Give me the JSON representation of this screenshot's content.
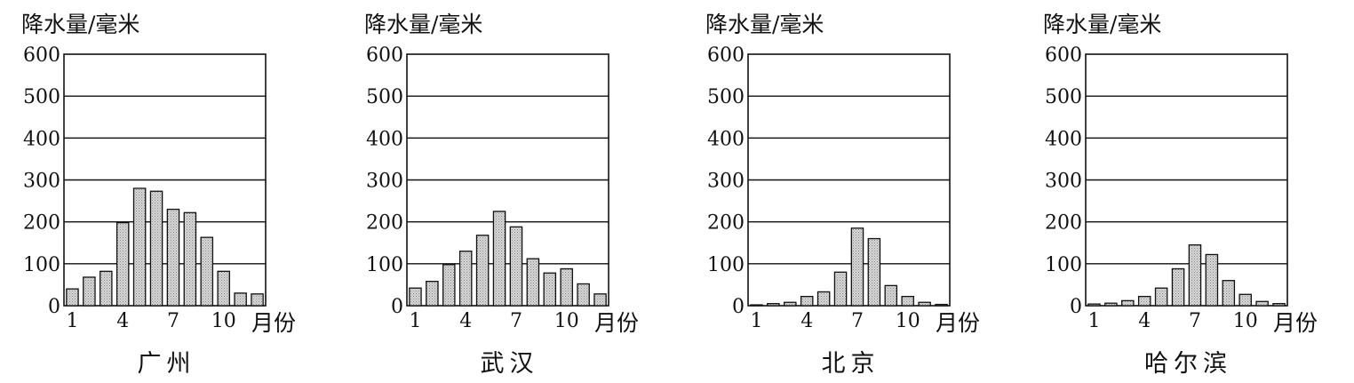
{
  "chart_data": [
    {
      "type": "bar",
      "title": "广州",
      "ylabel": "降水量/毫米",
      "xlabel": "月份",
      "ylim": [
        0,
        600
      ],
      "yticks": [
        "0",
        "100",
        "200",
        "300",
        "400",
        "500",
        "600"
      ],
      "xticks": [
        "1",
        "4",
        "7",
        "10"
      ],
      "categories": [
        "1",
        "2",
        "3",
        "4",
        "5",
        "6",
        "7",
        "8",
        "9",
        "10",
        "11",
        "12"
      ],
      "values": [
        40,
        68,
        82,
        198,
        280,
        273,
        230,
        222,
        163,
        82,
        30,
        28
      ]
    },
    {
      "type": "bar",
      "title": "武汉",
      "ylabel": "降水量/毫米",
      "xlabel": "月份",
      "ylim": [
        0,
        600
      ],
      "yticks": [
        "0",
        "100",
        "200",
        "300",
        "400",
        "500",
        "600"
      ],
      "xticks": [
        "1",
        "4",
        "7",
        "10"
      ],
      "categories": [
        "1",
        "2",
        "3",
        "4",
        "5",
        "6",
        "7",
        "8",
        "9",
        "10",
        "11",
        "12"
      ],
      "values": [
        42,
        58,
        98,
        130,
        168,
        225,
        188,
        112,
        78,
        88,
        52,
        28
      ]
    },
    {
      "type": "bar",
      "title": "北京",
      "ylabel": "降水量/毫米",
      "xlabel": "月份",
      "ylim": [
        0,
        600
      ],
      "yticks": [
        "0",
        "100",
        "200",
        "300",
        "400",
        "500",
        "600"
      ],
      "xticks": [
        "1",
        "4",
        "7",
        "10"
      ],
      "categories": [
        "1",
        "2",
        "3",
        "4",
        "5",
        "6",
        "7",
        "8",
        "9",
        "10",
        "11",
        "12"
      ],
      "values": [
        2,
        5,
        8,
        22,
        33,
        80,
        185,
        160,
        48,
        22,
        8,
        3
      ]
    },
    {
      "type": "bar",
      "title": "哈尔滨",
      "ylabel": "降水量/毫米",
      "xlabel": "月份",
      "ylim": [
        0,
        600
      ],
      "yticks": [
        "0",
        "100",
        "200",
        "300",
        "400",
        "500",
        "600"
      ],
      "xticks": [
        "1",
        "4",
        "7",
        "10"
      ],
      "categories": [
        "1",
        "2",
        "3",
        "4",
        "5",
        "6",
        "7",
        "8",
        "9",
        "10",
        "11",
        "12"
      ],
      "values": [
        4,
        6,
        12,
        22,
        42,
        88,
        145,
        122,
        60,
        27,
        10,
        5
      ]
    }
  ]
}
